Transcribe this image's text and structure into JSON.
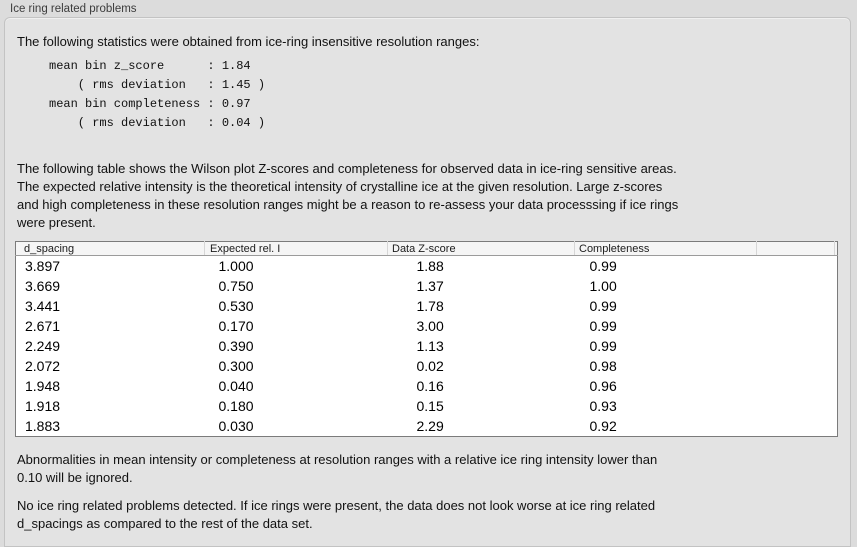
{
  "panel": {
    "title": "Ice ring related problems"
  },
  "intro": "The following statistics were obtained from ice-ring insensitive resolution ranges:",
  "stats_block": "mean bin z_score      : 1.84\n    ( rms deviation   : 1.45 )\nmean bin completeness : 0.97\n    ( rms deviation   : 0.04 )",
  "stats": {
    "mean_bin_z_score": "1.84",
    "z_score_rms_deviation": "1.45",
    "mean_bin_completeness": "0.97",
    "completeness_rms_deviation": "0.04"
  },
  "description": "The following table shows the Wilson plot Z-scores and completeness for observed data in ice-ring sensitive areas.\nThe expected relative intensity is the theoretical intensity of crystalline ice at the given resolution. Large z-scores\nand high completeness in these resolution ranges might be a reason to re-assess your data processsing if ice rings\nwere present.",
  "table": {
    "columns": [
      "d_spacing",
      "Expected rel. I",
      "Data Z-score",
      "Completeness"
    ],
    "column_keys": [
      "d-spacing",
      "expected-rel-i",
      "data-z-score",
      "completeness"
    ],
    "rows": [
      [
        "3.897",
        "1.000",
        "1.88",
        "0.99"
      ],
      [
        "3.669",
        "0.750",
        "1.37",
        "1.00"
      ],
      [
        "3.441",
        "0.530",
        "1.78",
        "0.99"
      ],
      [
        "2.671",
        "0.170",
        "3.00",
        "0.99"
      ],
      [
        "2.249",
        "0.390",
        "1.13",
        "0.99"
      ],
      [
        "2.072",
        "0.300",
        "0.02",
        "0.98"
      ],
      [
        "1.948",
        "0.040",
        "0.16",
        "0.96"
      ],
      [
        "1.918",
        "0.180",
        "0.15",
        "0.93"
      ],
      [
        "1.883",
        "0.030",
        "2.29",
        "0.92"
      ]
    ]
  },
  "note": "Abnormalities in mean intensity or completeness at resolution ranges with a relative ice ring intensity lower than\n0.10 will be ignored.",
  "conclusion": "No ice ring related problems detected. If ice rings were present, the data does not look worse at ice ring related\nd_spacings as compared to the rest of the data set.",
  "colors": {
    "page_background": "#dcdcdc",
    "panel_background": "#e3e3e3",
    "panel_border": "#c3c3c3",
    "table_background": "#ffffff",
    "table_border": "#7b7b7b",
    "header_background": "#f5f5f5",
    "text": "#111111"
  }
}
